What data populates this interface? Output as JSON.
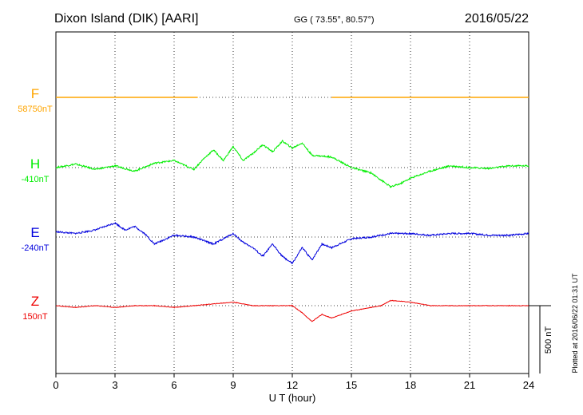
{
  "header": {
    "station": "Dixon Island (DIK)  [AARI]",
    "coords": "GG ( 73.55°,  80.57°)",
    "date": "2016/05/22"
  },
  "footer": {
    "plotted": "Plotted at 2016/06/22 01:31  UT"
  },
  "chart_data": {
    "type": "line",
    "xlabel": "U T (hour)",
    "xlim": [
      0,
      24
    ],
    "xticks": [
      0,
      3,
      6,
      9,
      12,
      15,
      18,
      21,
      24
    ],
    "scale_bar": "500 nT",
    "series": [
      {
        "name": "F",
        "baseline_label": "58750nT",
        "color": "#ffa500",
        "points": [
          [
            0,
            0
          ],
          [
            7.2,
            0
          ],
          [
            14.0,
            0
          ],
          [
            24,
            0
          ]
        ],
        "gaps": [
          [
            7.2,
            14.0
          ]
        ]
      },
      {
        "name": "H",
        "baseline_label": "-410nT",
        "color": "#00ee00",
        "points": [
          [
            0,
            0
          ],
          [
            1,
            20
          ],
          [
            2,
            -10
          ],
          [
            3,
            10
          ],
          [
            4,
            -20
          ],
          [
            5,
            25
          ],
          [
            6,
            40
          ],
          [
            7,
            -10
          ],
          [
            7.5,
            50
          ],
          [
            8,
            100
          ],
          [
            8.5,
            40
          ],
          [
            9,
            120
          ],
          [
            9.5,
            40
          ],
          [
            10,
            80
          ],
          [
            10.5,
            130
          ],
          [
            11,
            90
          ],
          [
            11.5,
            150
          ],
          [
            12,
            110
          ],
          [
            12.5,
            140
          ],
          [
            13,
            70
          ],
          [
            14,
            60
          ],
          [
            15,
            0
          ],
          [
            16,
            -30
          ],
          [
            16.5,
            -70
          ],
          [
            17,
            -110
          ],
          [
            17.5,
            -90
          ],
          [
            18,
            -60
          ],
          [
            19,
            -20
          ],
          [
            20,
            10
          ],
          [
            21,
            0
          ],
          [
            22,
            -5
          ],
          [
            23,
            10
          ],
          [
            24,
            10
          ]
        ]
      },
      {
        "name": "E",
        "baseline_label": "-240nT",
        "color": "#0000dd",
        "points": [
          [
            0,
            30
          ],
          [
            1,
            20
          ],
          [
            2,
            40
          ],
          [
            3,
            80
          ],
          [
            3.5,
            40
          ],
          [
            4,
            60
          ],
          [
            4.5,
            20
          ],
          [
            5,
            -40
          ],
          [
            6,
            10
          ],
          [
            7,
            0
          ],
          [
            8,
            -40
          ],
          [
            9,
            20
          ],
          [
            9.5,
            -30
          ],
          [
            10,
            -60
          ],
          [
            10.5,
            -110
          ],
          [
            11,
            -40
          ],
          [
            11.5,
            -110
          ],
          [
            12,
            -150
          ],
          [
            12.5,
            -60
          ],
          [
            13,
            -130
          ],
          [
            13.5,
            -40
          ],
          [
            14,
            -60
          ],
          [
            15,
            -10
          ],
          [
            16,
            0
          ],
          [
            17,
            20
          ],
          [
            18,
            20
          ],
          [
            19,
            10
          ],
          [
            20,
            20
          ],
          [
            21,
            20
          ],
          [
            22,
            10
          ],
          [
            23,
            10
          ],
          [
            24,
            20
          ]
        ]
      },
      {
        "name": "Z",
        "baseline_label": "150nT",
        "color": "#ee0000",
        "points": [
          [
            0,
            0
          ],
          [
            1,
            -10
          ],
          [
            2,
            0
          ],
          [
            3,
            -10
          ],
          [
            4,
            0
          ],
          [
            5,
            0
          ],
          [
            6,
            -10
          ],
          [
            7,
            0
          ],
          [
            8,
            10
          ],
          [
            9,
            20
          ],
          [
            10,
            0
          ],
          [
            11,
            0
          ],
          [
            12,
            0
          ],
          [
            12.5,
            -40
          ],
          [
            13,
            -90
          ],
          [
            13.5,
            -50
          ],
          [
            14,
            -70
          ],
          [
            15,
            -30
          ],
          [
            16,
            -10
          ],
          [
            16.5,
            0
          ],
          [
            17,
            30
          ],
          [
            18,
            20
          ],
          [
            19,
            0
          ],
          [
            20,
            0
          ],
          [
            21,
            0
          ],
          [
            22,
            0
          ],
          [
            23,
            0
          ],
          [
            24,
            0
          ]
        ]
      }
    ]
  }
}
